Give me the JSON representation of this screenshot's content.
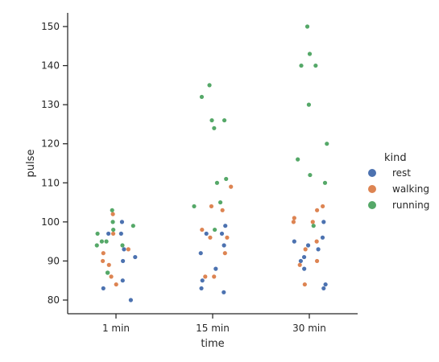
{
  "chart_data": {
    "type": "scatter",
    "subtype": "strip",
    "xlabel": "time",
    "ylabel": "pulse",
    "categories": [
      "1 min",
      "15 min",
      "30 min"
    ],
    "yticks": [
      80,
      90,
      100,
      110,
      120,
      130,
      140,
      150
    ],
    "ylim": [
      76.5,
      153.5
    ],
    "grid": false,
    "legend": {
      "title": "kind",
      "placement": "right",
      "entries": [
        "rest",
        "walking",
        "running"
      ]
    },
    "series": [
      {
        "name": "rest",
        "color": "#4c72b0",
        "points": [
          {
            "x": "1 min",
            "y": 100
          },
          {
            "x": "1 min",
            "y": 97
          },
          {
            "x": "1 min",
            "y": 97
          },
          {
            "x": "1 min",
            "y": 91
          },
          {
            "x": "1 min",
            "y": 90
          },
          {
            "x": "1 min",
            "y": 85
          },
          {
            "x": "1 min",
            "y": 83
          },
          {
            "x": "1 min",
            "y": 80
          },
          {
            "x": "1 min",
            "y": 93
          },
          {
            "x": "15 min",
            "y": 99
          },
          {
            "x": "15 min",
            "y": 97
          },
          {
            "x": "15 min",
            "y": 97
          },
          {
            "x": "15 min",
            "y": 94
          },
          {
            "x": "15 min",
            "y": 92
          },
          {
            "x": "15 min",
            "y": 88
          },
          {
            "x": "15 min",
            "y": 85
          },
          {
            "x": "15 min",
            "y": 83
          },
          {
            "x": "15 min",
            "y": 82
          },
          {
            "x": "30 min",
            "y": 100
          },
          {
            "x": "30 min",
            "y": 96
          },
          {
            "x": "30 min",
            "y": 95
          },
          {
            "x": "30 min",
            "y": 94
          },
          {
            "x": "30 min",
            "y": 93
          },
          {
            "x": "30 min",
            "y": 91
          },
          {
            "x": "30 min",
            "y": 90
          },
          {
            "x": "30 min",
            "y": 88
          },
          {
            "x": "30 min",
            "y": 84
          },
          {
            "x": "30 min",
            "y": 83
          }
        ]
      },
      {
        "name": "walking",
        "color": "#dd8452",
        "points": [
          {
            "x": "1 min",
            "y": 102
          },
          {
            "x": "1 min",
            "y": 97
          },
          {
            "x": "1 min",
            "y": 93
          },
          {
            "x": "1 min",
            "y": 92
          },
          {
            "x": "1 min",
            "y": 90
          },
          {
            "x": "1 min",
            "y": 89
          },
          {
            "x": "1 min",
            "y": 86
          },
          {
            "x": "1 min",
            "y": 84
          },
          {
            "x": "15 min",
            "y": 109
          },
          {
            "x": "15 min",
            "y": 104
          },
          {
            "x": "15 min",
            "y": 103
          },
          {
            "x": "15 min",
            "y": 98
          },
          {
            "x": "15 min",
            "y": 96
          },
          {
            "x": "15 min",
            "y": 96
          },
          {
            "x": "15 min",
            "y": 92
          },
          {
            "x": "15 min",
            "y": 86
          },
          {
            "x": "15 min",
            "y": 86
          },
          {
            "x": "30 min",
            "y": 104
          },
          {
            "x": "30 min",
            "y": 103
          },
          {
            "x": "30 min",
            "y": 101
          },
          {
            "x": "30 min",
            "y": 100
          },
          {
            "x": "30 min",
            "y": 100
          },
          {
            "x": "30 min",
            "y": 95
          },
          {
            "x": "30 min",
            "y": 93
          },
          {
            "x": "30 min",
            "y": 90
          },
          {
            "x": "30 min",
            "y": 89
          },
          {
            "x": "30 min",
            "y": 84
          }
        ]
      },
      {
        "name": "running",
        "color": "#55a868",
        "points": [
          {
            "x": "1 min",
            "y": 103
          },
          {
            "x": "1 min",
            "y": 100
          },
          {
            "x": "1 min",
            "y": 99
          },
          {
            "x": "1 min",
            "y": 98
          },
          {
            "x": "1 min",
            "y": 97
          },
          {
            "x": "1 min",
            "y": 95
          },
          {
            "x": "1 min",
            "y": 95
          },
          {
            "x": "1 min",
            "y": 94
          },
          {
            "x": "1 min",
            "y": 94
          },
          {
            "x": "1 min",
            "y": 87
          },
          {
            "x": "1 min",
            "y": 87
          },
          {
            "x": "15 min",
            "y": 135
          },
          {
            "x": "15 min",
            "y": 132
          },
          {
            "x": "15 min",
            "y": 126
          },
          {
            "x": "15 min",
            "y": 126
          },
          {
            "x": "15 min",
            "y": 124
          },
          {
            "x": "15 min",
            "y": 111
          },
          {
            "x": "15 min",
            "y": 110
          },
          {
            "x": "15 min",
            "y": 105
          },
          {
            "x": "15 min",
            "y": 104
          },
          {
            "x": "15 min",
            "y": 98
          },
          {
            "x": "30 min",
            "y": 150
          },
          {
            "x": "30 min",
            "y": 143
          },
          {
            "x": "30 min",
            "y": 140
          },
          {
            "x": "30 min",
            "y": 140
          },
          {
            "x": "30 min",
            "y": 130
          },
          {
            "x": "30 min",
            "y": 120
          },
          {
            "x": "30 min",
            "y": 116
          },
          {
            "x": "30 min",
            "y": 112
          },
          {
            "x": "30 min",
            "y": 110
          },
          {
            "x": "30 min",
            "y": 99
          }
        ]
      }
    ]
  }
}
